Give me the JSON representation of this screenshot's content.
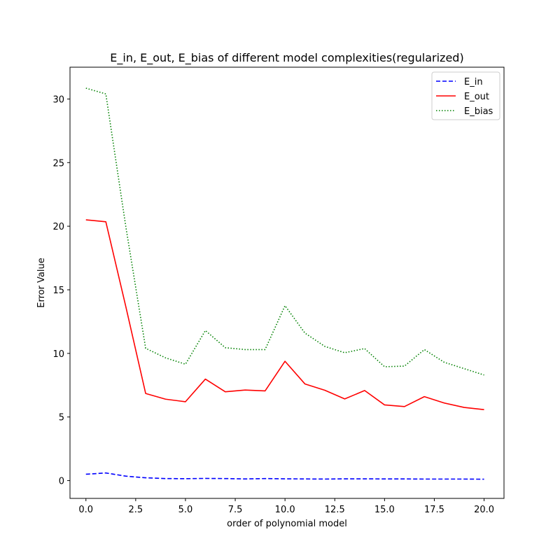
{
  "chart_data": {
    "type": "line",
    "title": "E_in, E_out, E_bias of different model complexities(regularized)",
    "xlabel": "order of polynomial model",
    "ylabel": "Error Value",
    "xlim": [
      -0.8,
      21.0
    ],
    "ylim": [
      -1.4,
      32.5
    ],
    "xticks": [
      0.0,
      2.5,
      5.0,
      7.5,
      10.0,
      12.5,
      15.0,
      17.5,
      20.0
    ],
    "xtick_labels": [
      "0.0",
      "2.5",
      "5.0",
      "7.5",
      "10.0",
      "12.5",
      "15.0",
      "17.5",
      "20.0"
    ],
    "yticks": [
      0,
      5,
      10,
      15,
      20,
      25,
      30
    ],
    "ytick_labels": [
      "0",
      "5",
      "10",
      "15",
      "20",
      "25",
      "30"
    ],
    "grid": false,
    "legend_position": "top-right",
    "x": [
      0,
      1,
      2,
      3,
      4,
      5,
      6,
      7,
      8,
      9,
      10,
      11,
      12,
      13,
      14,
      15,
      16,
      17,
      18,
      19,
      20
    ],
    "series": [
      {
        "name": "E_in",
        "color": "#0000ff",
        "style": "dashed",
        "values": [
          0.5,
          0.6,
          0.35,
          0.22,
          0.16,
          0.15,
          0.17,
          0.16,
          0.13,
          0.16,
          0.14,
          0.13,
          0.12,
          0.14,
          0.14,
          0.13,
          0.13,
          0.12,
          0.12,
          0.12,
          0.11
        ]
      },
      {
        "name": "E_out",
        "color": "#ff0000",
        "style": "solid",
        "values": [
          20.5,
          20.35,
          13.7,
          6.85,
          6.4,
          6.2,
          7.98,
          6.98,
          7.12,
          7.05,
          9.38,
          7.6,
          7.1,
          6.42,
          7.08,
          5.95,
          5.82,
          6.6,
          6.1,
          5.75,
          5.58
        ]
      },
      {
        "name": "E_bias",
        "color": "#008000",
        "style": "dotted",
        "values": [
          30.85,
          30.4,
          20.0,
          10.4,
          9.65,
          9.15,
          11.8,
          10.45,
          10.3,
          10.3,
          13.75,
          11.6,
          10.55,
          10.05,
          10.38,
          8.95,
          9.0,
          10.3,
          9.3,
          8.8,
          8.3
        ]
      }
    ]
  }
}
